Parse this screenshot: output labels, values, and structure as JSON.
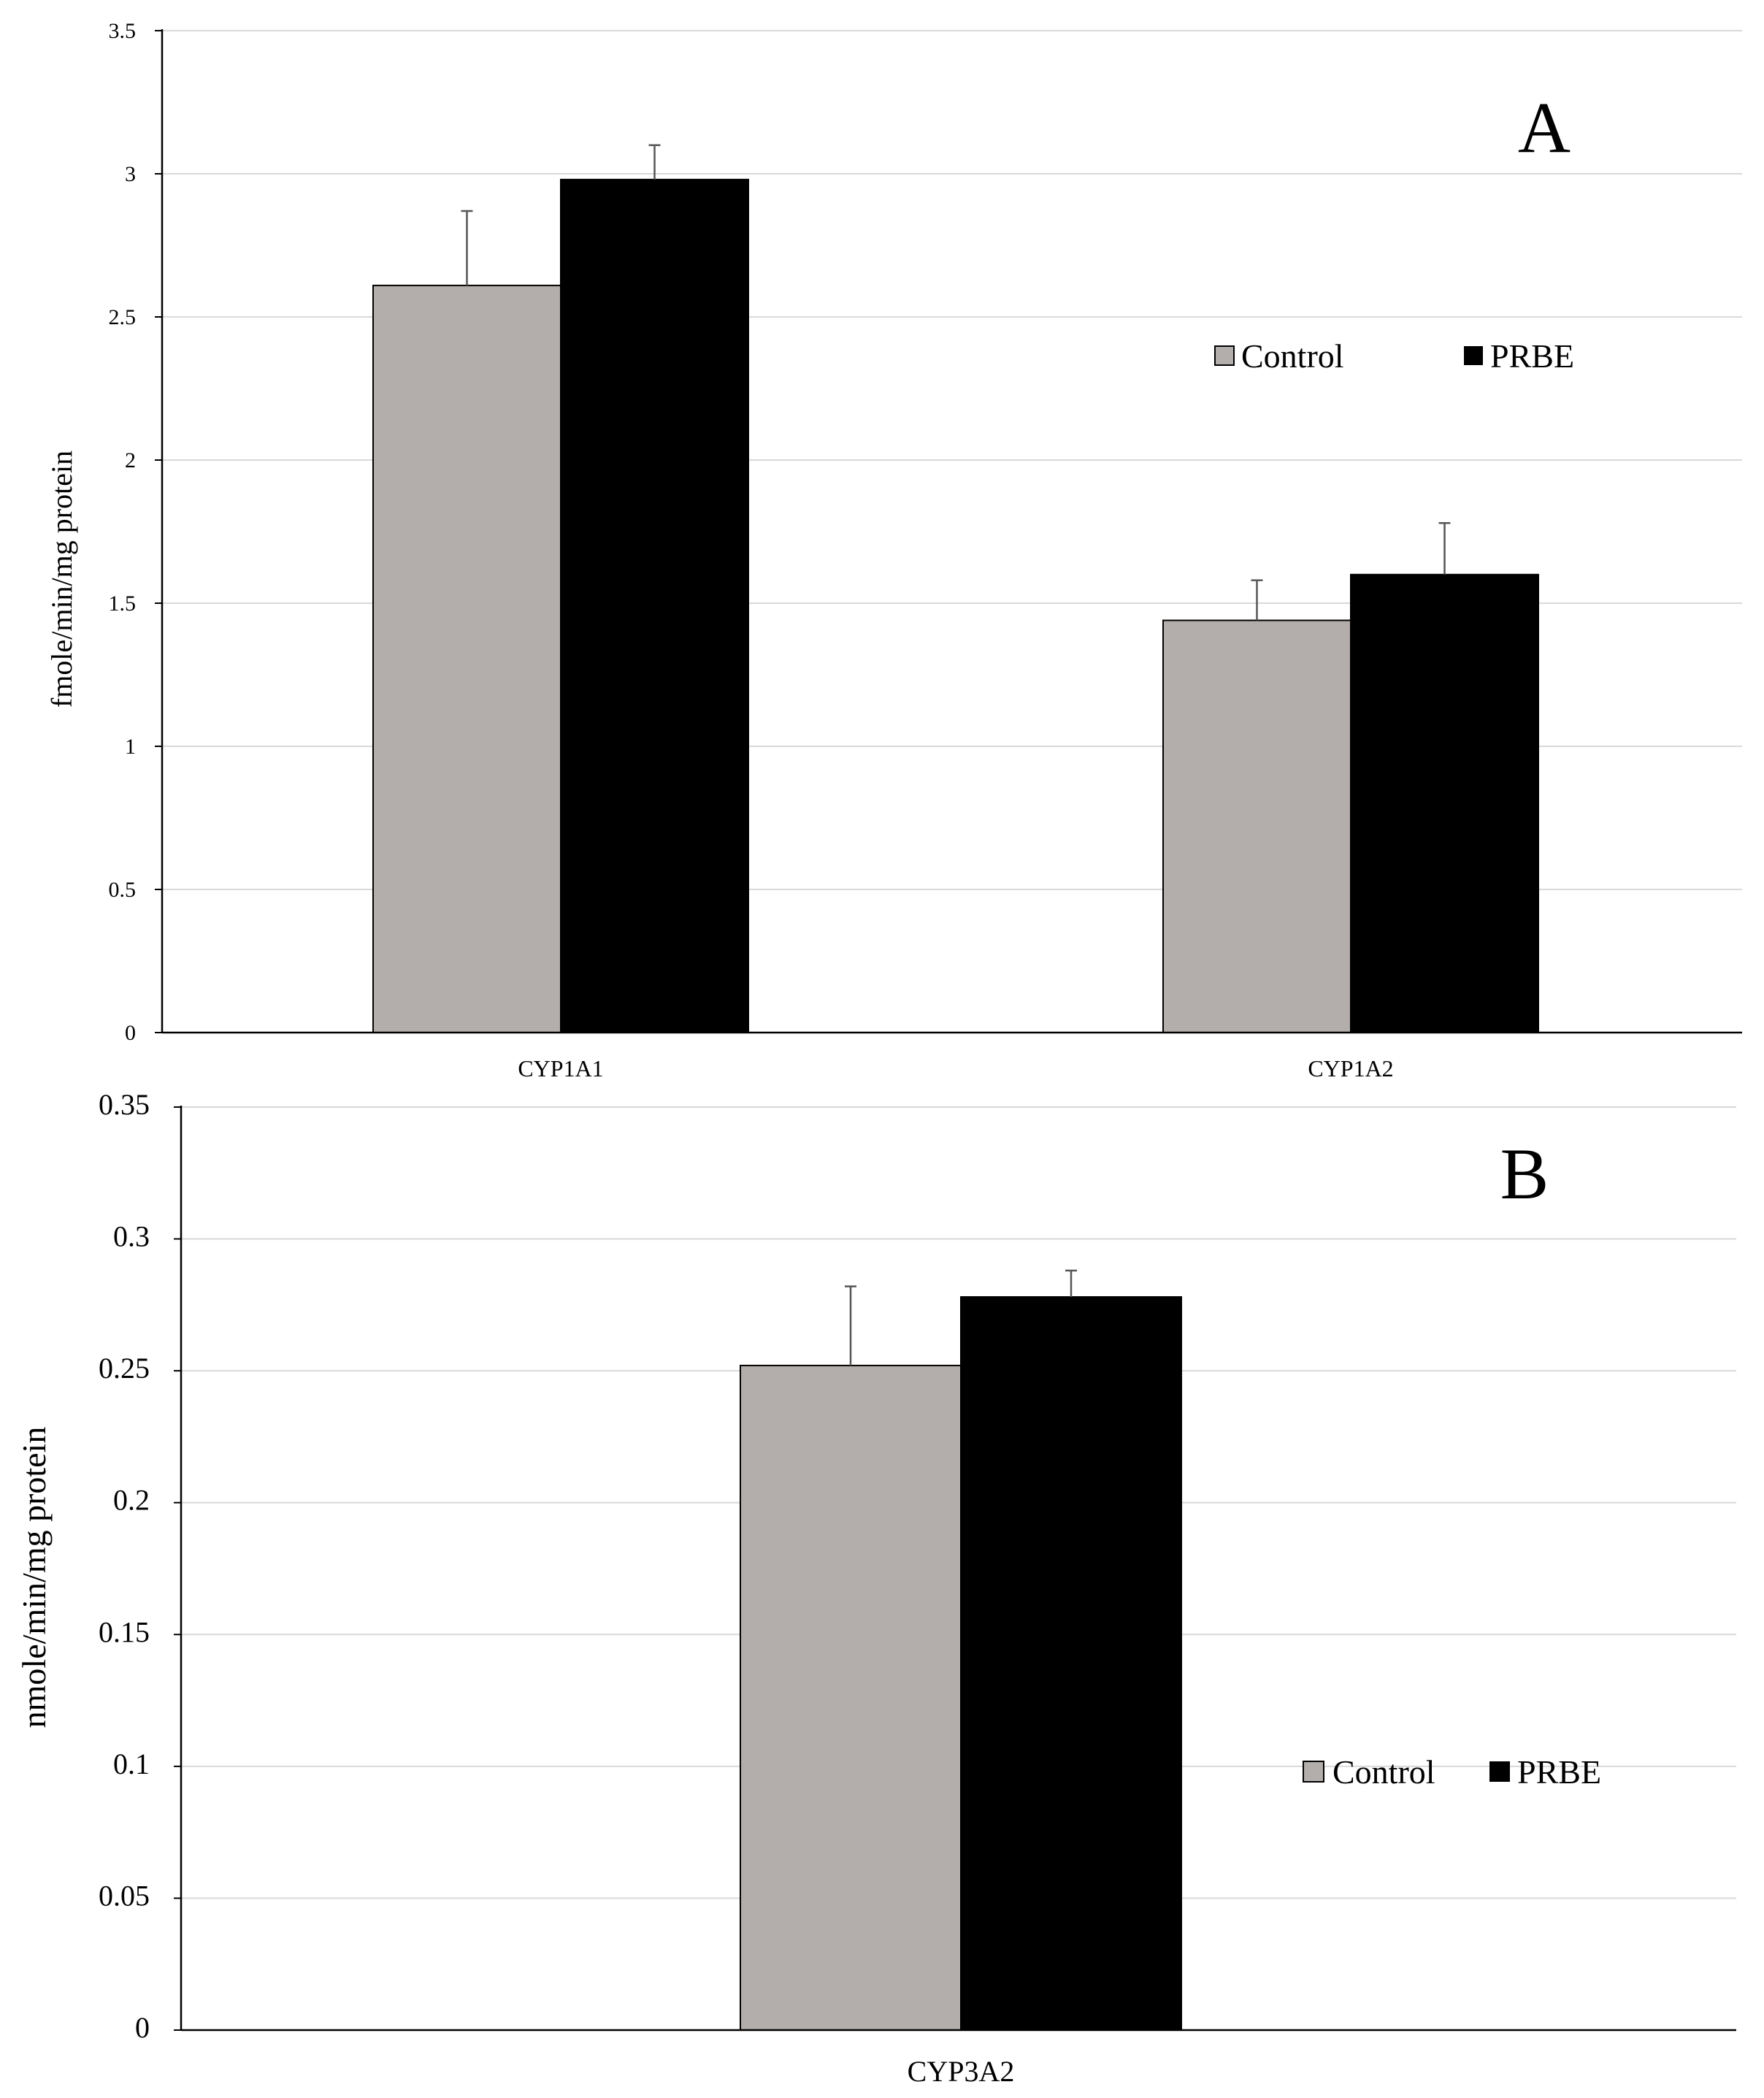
{
  "colors": {
    "control": "#b3aeab",
    "prbe": "#000000",
    "grid": "#d9d9d9",
    "axis": "#000000",
    "errbar": "#555555"
  },
  "chart_data": [
    {
      "type": "bar",
      "panel_label": "A",
      "ylabel": "fmole/min/mg protein",
      "xlabel": "",
      "ylim": [
        0,
        3.5
      ],
      "yticks": [
        0,
        0.5,
        1,
        1.5,
        2,
        2.5,
        3,
        3.5
      ],
      "ytick_labels": [
        "0",
        "0.5",
        "1",
        "1.5",
        "2",
        "2.5",
        "3",
        "3.5"
      ],
      "grid": true,
      "legend_position": "center-right",
      "categories": [
        "CYP1A1",
        "CYP1A2"
      ],
      "series": [
        {
          "name": "Control",
          "values": [
            2.61,
            1.44
          ],
          "errors": [
            0.26,
            0.14
          ]
        },
        {
          "name": "PRBE",
          "values": [
            2.98,
            1.6
          ],
          "errors": [
            0.12,
            0.18
          ]
        }
      ]
    },
    {
      "type": "bar",
      "panel_label": "B",
      "ylabel": "nmole/min/mg protein",
      "xlabel": "",
      "ylim": [
        0,
        0.35
      ],
      "yticks": [
        0,
        0.05,
        0.1,
        0.15,
        0.2,
        0.25,
        0.3,
        0.35
      ],
      "ytick_labels": [
        "0",
        "0.05",
        "0.1",
        "0.15",
        "0.2",
        "0.25",
        "0.3",
        "0.35"
      ],
      "grid": true,
      "legend_position": "center-right",
      "categories": [
        "CYP3A2"
      ],
      "series": [
        {
          "name": "Control",
          "values": [
            0.252
          ],
          "errors": [
            0.03
          ]
        },
        {
          "name": "PRBE",
          "values": [
            0.278
          ],
          "errors": [
            0.01
          ]
        }
      ]
    }
  ]
}
